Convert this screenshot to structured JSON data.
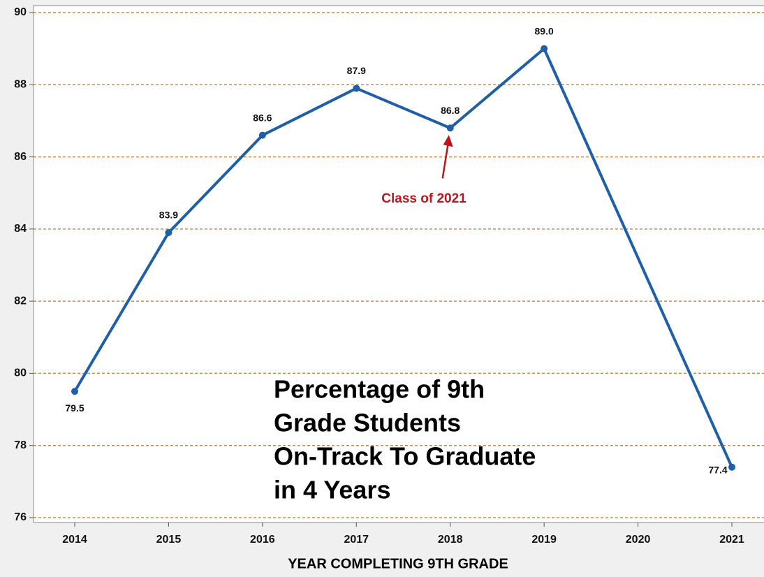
{
  "chart_data": {
    "type": "line",
    "title_lines": [
      "Percentage of 9th",
      "Grade Students",
      "On-Track To Graduate",
      "in 4 Years"
    ],
    "x_label": "YEAR COMPLETING 9TH GRADE",
    "annotation": "Class of 2021",
    "x": [
      2014,
      2015,
      2016,
      2017,
      2018,
      2019,
      2021
    ],
    "series": [
      {
        "name": "On-Track",
        "color": "#1f5fa8",
        "values": [
          79.5,
          83.9,
          86.6,
          87.9,
          86.8,
          89.0,
          77.4
        ],
        "value_labels": [
          "79.5",
          "83.9",
          "86.6",
          "87.9",
          "86.8",
          "89.0",
          "77.4"
        ]
      }
    ],
    "xlim": [
      2014,
      2021
    ],
    "xticks": [
      2014,
      2015,
      2016,
      2017,
      2018,
      2019,
      2020,
      2021
    ],
    "ylim": [
      76,
      90
    ],
    "yticks": [
      76,
      78,
      80,
      82,
      84,
      86,
      88,
      90
    ],
    "grid": true,
    "grid_color": "#d48a3e",
    "annotation_color": "#c0141c"
  }
}
